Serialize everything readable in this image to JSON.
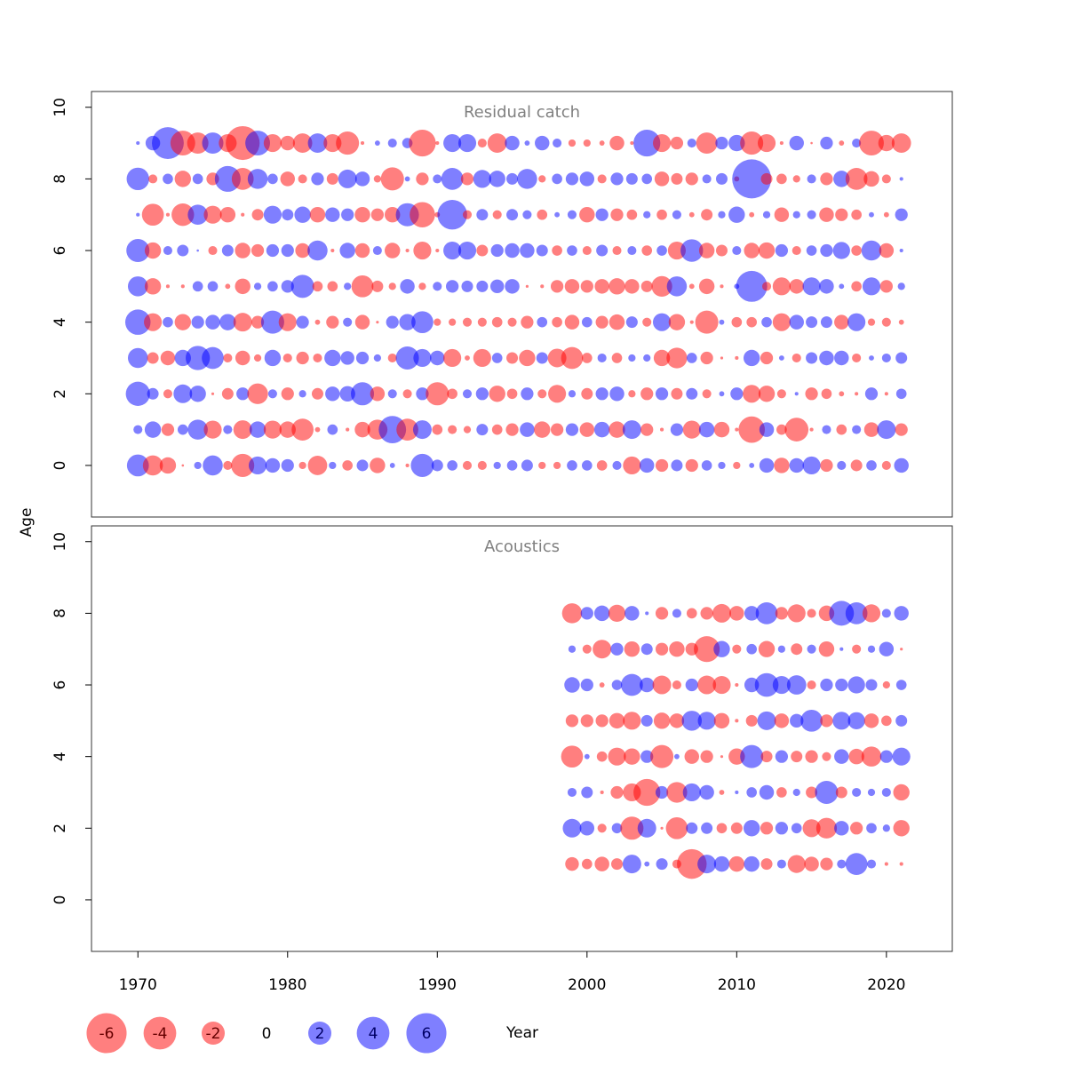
{
  "chart_data": [
    {
      "type": "bubble",
      "title": "Residual catch",
      "x": [
        1970,
        1971,
        1972,
        1973,
        1974,
        1975,
        1976,
        1977,
        1978,
        1979,
        1980,
        1981,
        1982,
        1983,
        1984,
        1985,
        1986,
        1987,
        1988,
        1989,
        1990,
        1991,
        1992,
        1993,
        1994,
        1995,
        1996,
        1997,
        1998,
        1999,
        2000,
        2001,
        2002,
        2003,
        2004,
        2005,
        2006,
        2007,
        2008,
        2009,
        2010,
        2011,
        2012,
        2013,
        2014,
        2015,
        2016,
        2017,
        2018,
        2019,
        2020,
        2021
      ],
      "ages": [
        0,
        1,
        2,
        3,
        4,
        5,
        6,
        7,
        8,
        9
      ],
      "values": [
        [
          1.8,
          -1.5,
          -1.0,
          -0.02,
          0.2,
          1.5,
          -0.3,
          -2.0,
          1.2,
          0.8,
          0.6,
          -0.2,
          -1.4,
          0.2,
          -0.4,
          0.5,
          -0.9,
          0.1,
          -0.05,
          2.0,
          0.5,
          0.4,
          -0.3,
          -0.3,
          0.2,
          0.4,
          0.5,
          -0.2,
          -0.2,
          0.4,
          0.4,
          -0.4,
          0.3,
          -1.2,
          0.8,
          -0.6,
          0.5,
          -0.6,
          0.4,
          0.2,
          -0.2,
          0.1,
          0.8,
          -0.9,
          0.8,
          1.2,
          -0.6,
          0.3,
          -0.5,
          0.4,
          -0.3,
          0.8
        ],
        [
          0.3,
          1.0,
          -0.6,
          0.4,
          1.5,
          -1.2,
          0.3,
          -1.3,
          1.0,
          -1.2,
          -1.0,
          -1.8,
          -0.1,
          0.4,
          -0.05,
          -0.9,
          -1.5,
          2.8,
          -1.8,
          1.3,
          -0.4,
          -0.3,
          -0.2,
          0.5,
          -0.4,
          -0.6,
          0.8,
          -1.0,
          -0.6,
          0.6,
          -0.8,
          0.9,
          -1.0,
          1.3,
          -0.6,
          -0.05,
          0.6,
          -1.2,
          0.9,
          -0.9,
          -0.05,
          -2.6,
          0.8,
          -0.4,
          -2.1,
          -0.05,
          0.3,
          -0.4,
          0.3,
          -0.8,
          1.3,
          -0.6
        ],
        [
          2.2,
          0.5,
          -0.3,
          1.3,
          1.0,
          -0.03,
          -0.5,
          0.6,
          -1.6,
          0.3,
          -0.6,
          0.2,
          -0.5,
          0.8,
          0.9,
          2.0,
          -0.8,
          0.3,
          -0.3,
          0.6,
          -2.0,
          -0.4,
          0.3,
          0.6,
          -1.0,
          -0.4,
          0.6,
          -0.3,
          -1.2,
          0.2,
          -0.5,
          0.6,
          0.8,
          -0.2,
          -0.6,
          0.6,
          -0.5,
          0.5,
          -0.3,
          0.1,
          0.6,
          -1.2,
          -1.0,
          -0.3,
          0.05,
          -0.6,
          -0.4,
          -0.1,
          -0.05,
          0.6,
          -0.05,
          0.4
        ],
        [
          1.5,
          -0.5,
          -0.8,
          1.0,
          2.2,
          1.8,
          -0.3,
          -0.8,
          -0.2,
          1.0,
          -0.3,
          -0.6,
          -0.3,
          1.0,
          0.7,
          0.6,
          0.2,
          -0.3,
          2.0,
          1.2,
          0.8,
          -1.2,
          -0.1,
          -1.2,
          0.4,
          -0.5,
          -1.0,
          0.5,
          -1.3,
          -1.8,
          -0.4,
          0.3,
          -0.4,
          0.2,
          0.2,
          -1.0,
          -1.6,
          0.4,
          -0.6,
          -0.03,
          -0.05,
          1.0,
          -0.6,
          0.1,
          -0.3,
          0.5,
          0.8,
          0.8,
          -0.3,
          0.1,
          0.3,
          0.5
        ],
        [
          2.4,
          -1.2,
          0.4,
          -1.0,
          0.6,
          0.8,
          1.0,
          -1.3,
          -0.6,
          2.0,
          -1.2,
          0.6,
          -0.1,
          -0.6,
          0.3,
          -0.8,
          -0.03,
          0.6,
          1.0,
          1.8,
          -0.2,
          -0.2,
          -0.3,
          -0.3,
          -0.4,
          -0.3,
          -0.6,
          0.4,
          -0.4,
          -0.8,
          0.4,
          -0.6,
          -0.9,
          0.5,
          -0.3,
          1.2,
          -1.0,
          -0.05,
          -2.0,
          0.1,
          -0.4,
          -0.4,
          0.4,
          -1.2,
          0.8,
          0.5,
          0.5,
          -0.8,
          1.2,
          -0.2,
          -0.3,
          -0.1
        ],
        [
          1.5,
          -1.0,
          -0.05,
          -0.05,
          0.4,
          0.4,
          -0.1,
          -0.9,
          0.2,
          0.4,
          0.6,
          2.0,
          -0.4,
          -0.4,
          0.2,
          -1.8,
          -0.5,
          -0.2,
          0.8,
          -0.2,
          0.3,
          0.6,
          0.5,
          0.5,
          0.7,
          0.8,
          -0.03,
          -0.05,
          -0.6,
          -0.8,
          -0.6,
          -0.8,
          -1.0,
          -0.8,
          -0.5,
          -1.6,
          1.5,
          -0.1,
          -0.9,
          -0.05,
          0.1,
          3.6,
          -0.3,
          -1.2,
          -0.8,
          1.2,
          0.8,
          0.1,
          -0.4,
          1.2,
          -0.6,
          0.2
        ],
        [
          2.0,
          -1.0,
          0.3,
          0.5,
          0.02,
          -0.3,
          0.5,
          -0.9,
          -0.6,
          0.6,
          0.6,
          -0.8,
          1.5,
          -0.05,
          0.9,
          -0.8,
          0.3,
          -0.9,
          -0.05,
          -1.2,
          -0.05,
          1.2,
          1.2,
          -0.5,
          0.6,
          0.8,
          0.8,
          0.5,
          -0.4,
          0.4,
          -0.3,
          0.5,
          -0.3,
          0.3,
          -0.4,
          0.4,
          -1.2,
          1.9,
          -0.9,
          -0.5,
          0.3,
          -0.9,
          -1.0,
          0.6,
          -0.3,
          0.4,
          0.6,
          1.1,
          -0.4,
          1.5,
          -0.8,
          0.05
        ],
        [
          0.05,
          -1.8,
          -0.05,
          -1.9,
          1.5,
          -1.2,
          -0.9,
          -0.05,
          -0.5,
          1.2,
          0.5,
          1.0,
          -0.9,
          0.8,
          0.6,
          -0.9,
          -0.6,
          -0.9,
          2.0,
          -2.4,
          -0.1,
          3.3,
          -0.3,
          0.5,
          -0.3,
          0.5,
          0.3,
          -0.4,
          0.1,
          0.3,
          -0.9,
          0.6,
          -0.6,
          -0.4,
          0.2,
          -0.4,
          0.3,
          -0.1,
          -0.5,
          0.2,
          1.0,
          -0.1,
          0.2,
          -0.8,
          0.2,
          0.3,
          -0.8,
          -0.6,
          -0.4,
          0.1,
          -0.1,
          0.6
        ],
        [
          1.9,
          -0.3,
          0.4,
          -1.0,
          0.4,
          -0.6,
          2.5,
          -1.8,
          1.5,
          0.4,
          -0.8,
          -0.3,
          0.6,
          -0.5,
          1.3,
          0.8,
          -0.2,
          -2.0,
          0.1,
          -0.6,
          0.3,
          1.8,
          -0.6,
          1.2,
          1.0,
          0.5,
          1.5,
          -0.2,
          0.4,
          0.6,
          0.8,
          -0.3,
          0.6,
          0.5,
          0.4,
          -0.8,
          -0.5,
          -0.6,
          0.3,
          0.5,
          -0.1,
          5.7,
          -0.5,
          -0.4,
          -0.2,
          0.3,
          -0.6,
          1.0,
          -1.8,
          -0.9,
          -0.3,
          0.05
        ],
        [
          0.05,
          0.8,
          3.8,
          -2.3,
          -1.7,
          1.7,
          -1.2,
          -4.3,
          2.3,
          -1.2,
          -0.8,
          -1.4,
          1.4,
          -1.2,
          -2.0,
          -0.05,
          0.1,
          0.3,
          0.4,
          -2.7,
          -0.05,
          1.2,
          1.2,
          -0.3,
          -1.4,
          0.8,
          0.1,
          0.8,
          0.3,
          -0.2,
          -0.2,
          -0.1,
          -0.8,
          -0.05,
          2.7,
          -1.2,
          -0.6,
          0.3,
          -1.7,
          0.6,
          1.0,
          -2.0,
          -1.2,
          -0.05,
          0.8,
          -0.02,
          0.6,
          -0.1,
          0.3,
          -2.3,
          -1.0,
          -1.4
        ]
      ],
      "xlim": [
        1966.9,
        2024.4
      ],
      "ylim": [
        -1.44,
        10.44
      ],
      "yticks": [
        0,
        2,
        4,
        6,
        8,
        10
      ]
    },
    {
      "type": "bubble",
      "title": "Acoustics",
      "x": [
        1999,
        2000,
        2001,
        2002,
        2003,
        2004,
        2005,
        2006,
        2007,
        2008,
        2009,
        2010,
        2011,
        2012,
        2013,
        2014,
        2015,
        2016,
        2017,
        2018,
        2019,
        2020,
        2021
      ],
      "ages": [
        1,
        2,
        3,
        4,
        5,
        6,
        7,
        8
      ],
      "values": [
        [
          -0.7,
          -0.4,
          -0.8,
          -0.5,
          1.3,
          0.1,
          0.5,
          -0.3,
          -3.3,
          1.3,
          0.9,
          -0.9,
          0.9,
          -0.5,
          0.3,
          -1.2,
          -0.8,
          -0.6,
          0.3,
          1.8,
          0.3,
          -0.05,
          -0.05
        ],
        [
          1.3,
          0.8,
          -0.3,
          0.4,
          -2.0,
          1.3,
          -0.03,
          -1.8,
          0.5,
          0.5,
          -0.4,
          -0.5,
          1.0,
          -0.6,
          0.6,
          0.4,
          -1.2,
          -1.6,
          0.8,
          -0.6,
          0.4,
          0.2,
          -1.0
        ],
        [
          0.3,
          0.5,
          -0.05,
          -0.6,
          -1.2,
          -2.7,
          0.6,
          -1.6,
          1.2,
          0.8,
          -0.1,
          0.05,
          0.4,
          0.8,
          -0.4,
          0.2,
          -0.5,
          2.0,
          -0.5,
          0.3,
          0.2,
          0.3,
          -1.0
        ],
        [
          -1.8,
          0.1,
          -0.4,
          -1.2,
          -1.0,
          0.6,
          -2.0,
          0.1,
          -0.8,
          -0.6,
          -0.03,
          -1.0,
          2.0,
          -0.5,
          0.6,
          -0.5,
          -0.6,
          -0.3,
          0.8,
          -0.9,
          -1.5,
          0.6,
          1.2
        ],
        [
          -0.6,
          -0.6,
          -0.6,
          -0.9,
          -1.2,
          0.5,
          -1.0,
          -0.8,
          1.5,
          1.2,
          -0.9,
          -0.05,
          -0.5,
          1.3,
          -0.8,
          0.7,
          1.8,
          -0.6,
          1.2,
          1.1,
          -0.8,
          -0.4,
          0.5
        ],
        [
          0.9,
          0.6,
          -0.1,
          0.4,
          1.8,
          0.8,
          -1.3,
          -0.3,
          0.6,
          -1.3,
          -1.2,
          -0.05,
          0.8,
          2.1,
          1.2,
          1.4,
          -0.3,
          0.6,
          0.6,
          1.1,
          0.5,
          -0.2,
          0.4
        ],
        [
          0.2,
          -0.3,
          -1.3,
          0.6,
          -0.9,
          0.5,
          -0.6,
          -0.9,
          -0.6,
          -2.5,
          1.0,
          -0.3,
          0.4,
          -1.0,
          0.2,
          -0.5,
          0.3,
          -0.9,
          0.05,
          -0.3,
          0.2,
          0.8,
          -0.03
        ],
        [
          -1.5,
          0.6,
          0.9,
          -1.1,
          0.8,
          0.05,
          -0.6,
          0.3,
          -0.4,
          -0.6,
          -1.3,
          -0.8,
          0.8,
          1.8,
          -0.6,
          -1.2,
          -0.3,
          -0.9,
          2.3,
          1.8,
          -1.2,
          0.3,
          0.8
        ]
      ],
      "xlim": [
        1966.9,
        2024.4
      ],
      "ylim": [
        -1.44,
        10.44
      ],
      "yticks": [
        0,
        2,
        4,
        6,
        8,
        10
      ],
      "xticks": [
        1970,
        1980,
        1990,
        2000,
        2010,
        2020
      ]
    }
  ],
  "xlabel": "Year",
  "ylabel": "Age",
  "positive_color": "#0000ff",
  "negative_color": "#ff0000",
  "legend": {
    "values": [
      -6,
      -4,
      -2,
      0,
      2,
      4,
      6
    ]
  }
}
